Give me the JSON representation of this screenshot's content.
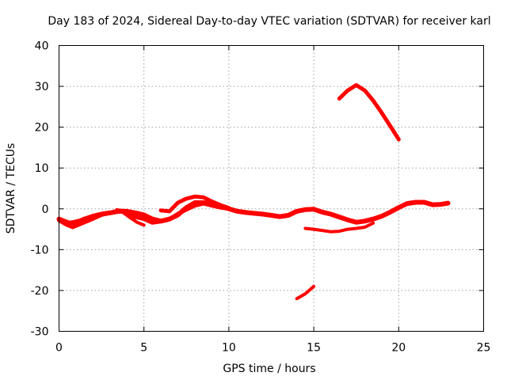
{
  "chart_data": {
    "type": "scatter",
    "title": "Day 183 of 2024, Sidereal Day-to-day VTEC variation (SDTVAR) for receiver karl",
    "xlabel": "GPS time / hours",
    "ylabel": "SDTVAR / TECUs",
    "xlim": [
      0,
      25
    ],
    "ylim": [
      -30,
      40
    ],
    "xticks": [
      0,
      5,
      10,
      15,
      20,
      25
    ],
    "yticks": [
      -30,
      -20,
      -10,
      0,
      10,
      20,
      30,
      40
    ],
    "xtick_labels": [
      "0",
      "5",
      "10",
      "15",
      "20",
      "25"
    ],
    "ytick_labels": [
      "-30",
      "-20",
      "-10",
      "0",
      "10",
      "20",
      "30",
      "40"
    ],
    "grid": true,
    "legend": "none",
    "marker_color": "#ff0000",
    "series": [
      {
        "name": "main-track",
        "x": [
          0.0,
          0.3,
          0.6,
          0.9,
          1.2,
          1.5,
          2.0,
          2.5,
          3.0,
          3.5,
          4.0,
          4.5,
          5.0,
          5.5,
          6.0,
          6.5,
          7.0,
          7.5,
          8.0,
          8.5,
          9.0,
          9.5,
          10.0,
          10.5,
          11.0,
          11.5,
          12.0,
          12.5,
          13.0,
          13.5,
          14.0,
          14.5,
          15.0,
          15.5,
          16.0,
          16.5,
          17.0,
          17.5,
          18.0,
          18.5,
          19.0,
          19.5,
          20.0,
          20.5,
          21.0,
          21.5,
          22.0,
          22.5,
          22.9
        ],
        "y": [
          -2.5,
          -3.0,
          -3.5,
          -3.3,
          -3.0,
          -2.5,
          -1.8,
          -1.3,
          -1.0,
          -0.6,
          -0.6,
          -1.0,
          -1.5,
          -2.5,
          -3.0,
          -2.5,
          -1.5,
          0.3,
          1.5,
          1.5,
          1.2,
          0.6,
          0.0,
          -0.6,
          -0.9,
          -1.1,
          -1.3,
          -1.6,
          -1.9,
          -1.6,
          -0.6,
          -0.2,
          -0.1,
          -0.8,
          -1.3,
          -2.0,
          -2.7,
          -3.3,
          -3.0,
          -2.5,
          -1.8,
          -0.8,
          0.3,
          1.3,
          1.6,
          1.6,
          1.0,
          1.1,
          1.4
        ]
      },
      {
        "name": "lower-band",
        "x": [
          0.0,
          0.4,
          0.8,
          1.2,
          1.8,
          2.5,
          3.0,
          3.5,
          4.0,
          4.5,
          5.0,
          5.5,
          6.0,
          6.5,
          7.0,
          7.5,
          8.0,
          8.5,
          9.0,
          9.5,
          10.0
        ],
        "y": [
          -2.8,
          -3.8,
          -4.5,
          -3.8,
          -2.8,
          -1.5,
          -1.0,
          -0.4,
          -0.6,
          -2.0,
          -2.5,
          -3.4,
          -3.1,
          -2.6,
          -1.2,
          -0.2,
          0.8,
          1.3,
          0.8,
          0.3,
          0.0
        ]
      },
      {
        "name": "dip-4h",
        "x": [
          3.4,
          3.8,
          4.2,
          4.6,
          5.0
        ],
        "y": [
          -0.2,
          -1.0,
          -2.2,
          -3.3,
          -4.0
        ]
      },
      {
        "name": "upper-7h",
        "x": [
          6.0,
          6.5,
          7.0,
          7.5,
          8.0,
          8.5,
          9.0,
          9.5,
          10.0
        ],
        "y": [
          -0.4,
          -0.6,
          1.5,
          2.5,
          3.0,
          2.8,
          1.8,
          0.9,
          0.2
        ]
      },
      {
        "name": "lower-15h",
        "x": [
          14.5,
          15.0,
          15.5,
          16.0,
          16.5,
          17.0,
          17.5,
          18.0,
          18.5
        ],
        "y": [
          -4.8,
          -5.0,
          -5.3,
          -5.6,
          -5.5,
          -5.0,
          -4.8,
          -4.5,
          -3.5
        ]
      },
      {
        "name": "arc-17h",
        "x": [
          16.5,
          17.0,
          17.5,
          18.0,
          18.5,
          19.0,
          19.5,
          20.0
        ],
        "y": [
          27.0,
          29.0,
          30.3,
          29.0,
          26.5,
          23.5,
          20.3,
          17.0
        ]
      },
      {
        "name": "segment-14h",
        "x": [
          14.0,
          14.5,
          15.0
        ],
        "y": [
          -22.0,
          -20.8,
          -19.0
        ]
      }
    ]
  }
}
